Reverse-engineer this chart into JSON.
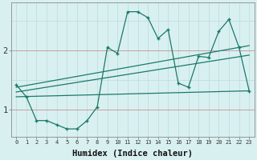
{
  "xlabel": "Humidex (Indice chaleur)",
  "background_color": "#d9f0f0",
  "grid_color": "#c0dede",
  "line_color": "#1a7a6a",
  "xlim": [
    -0.5,
    23.5
  ],
  "ylim": [
    0.55,
    2.8
  ],
  "yticks": [
    1,
    2
  ],
  "xticks": [
    0,
    1,
    2,
    3,
    4,
    5,
    6,
    7,
    8,
    9,
    10,
    11,
    12,
    13,
    14,
    15,
    16,
    17,
    18,
    19,
    20,
    21,
    22,
    23
  ],
  "series_main": {
    "x": [
      0,
      1,
      2,
      3,
      4,
      5,
      6,
      7,
      8,
      9,
      10,
      11,
      12,
      13,
      14,
      15,
      16,
      17,
      18,
      19,
      20,
      21,
      22,
      23
    ],
    "y": [
      1.42,
      1.22,
      0.82,
      0.82,
      0.75,
      0.68,
      0.68,
      0.82,
      1.05,
      2.05,
      1.95,
      2.65,
      2.65,
      2.55,
      2.2,
      2.35,
      1.45,
      1.38,
      1.9,
      1.88,
      2.32,
      2.52,
      2.05,
      1.32
    ]
  },
  "series_lines": [
    {
      "x": [
        0,
        23
      ],
      "y": [
        1.22,
        1.32
      ]
    },
    {
      "x": [
        0,
        23
      ],
      "y": [
        1.3,
        1.92
      ]
    },
    {
      "x": [
        0,
        23
      ],
      "y": [
        1.38,
        2.08
      ]
    }
  ]
}
